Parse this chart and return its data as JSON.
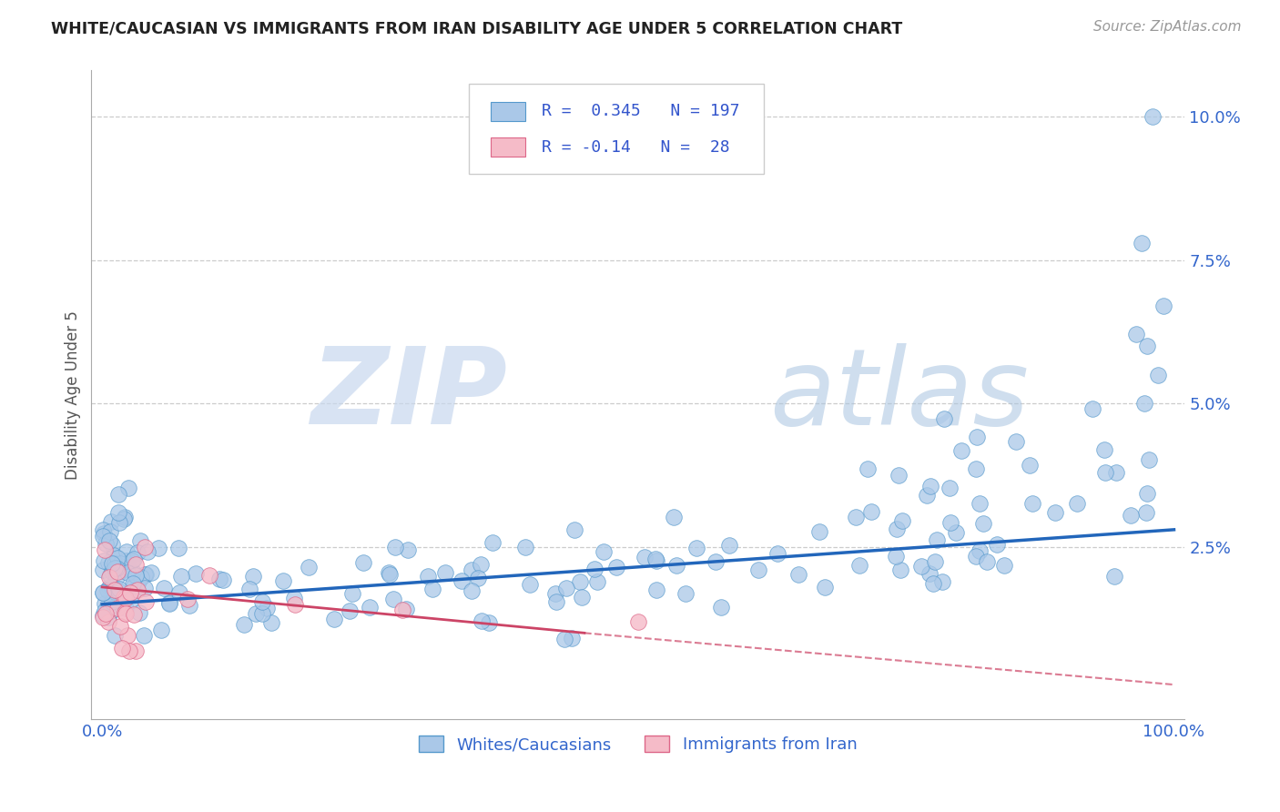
{
  "title": "WHITE/CAUCASIAN VS IMMIGRANTS FROM IRAN DISABILITY AGE UNDER 5 CORRELATION CHART",
  "source_text": "Source: ZipAtlas.com",
  "ylabel": "Disability Age Under 5",
  "watermark_zip": "ZIP",
  "watermark_atlas": "atlas",
  "xlim": [
    -0.01,
    1.01
  ],
  "ylim": [
    -0.005,
    0.108
  ],
  "grid_color": "#cccccc",
  "background_color": "#ffffff",
  "series1_color": "#aac8e8",
  "series1_edge": "#5599cc",
  "series1_label": "Whites/Caucasians",
  "series1_R": 0.345,
  "series1_N": 197,
  "series1_line_color": "#2266bb",
  "series2_color": "#f5bbc8",
  "series2_edge": "#dd6688",
  "series2_label": "Immigrants from Iran",
  "series2_R": -0.14,
  "series2_N": 28,
  "series2_line_color": "#cc4466",
  "legend_color": "#3355cc",
  "title_color": "#222222",
  "source_color": "#999999",
  "tick_color": "#3366cc",
  "ylabel_color": "#555555"
}
